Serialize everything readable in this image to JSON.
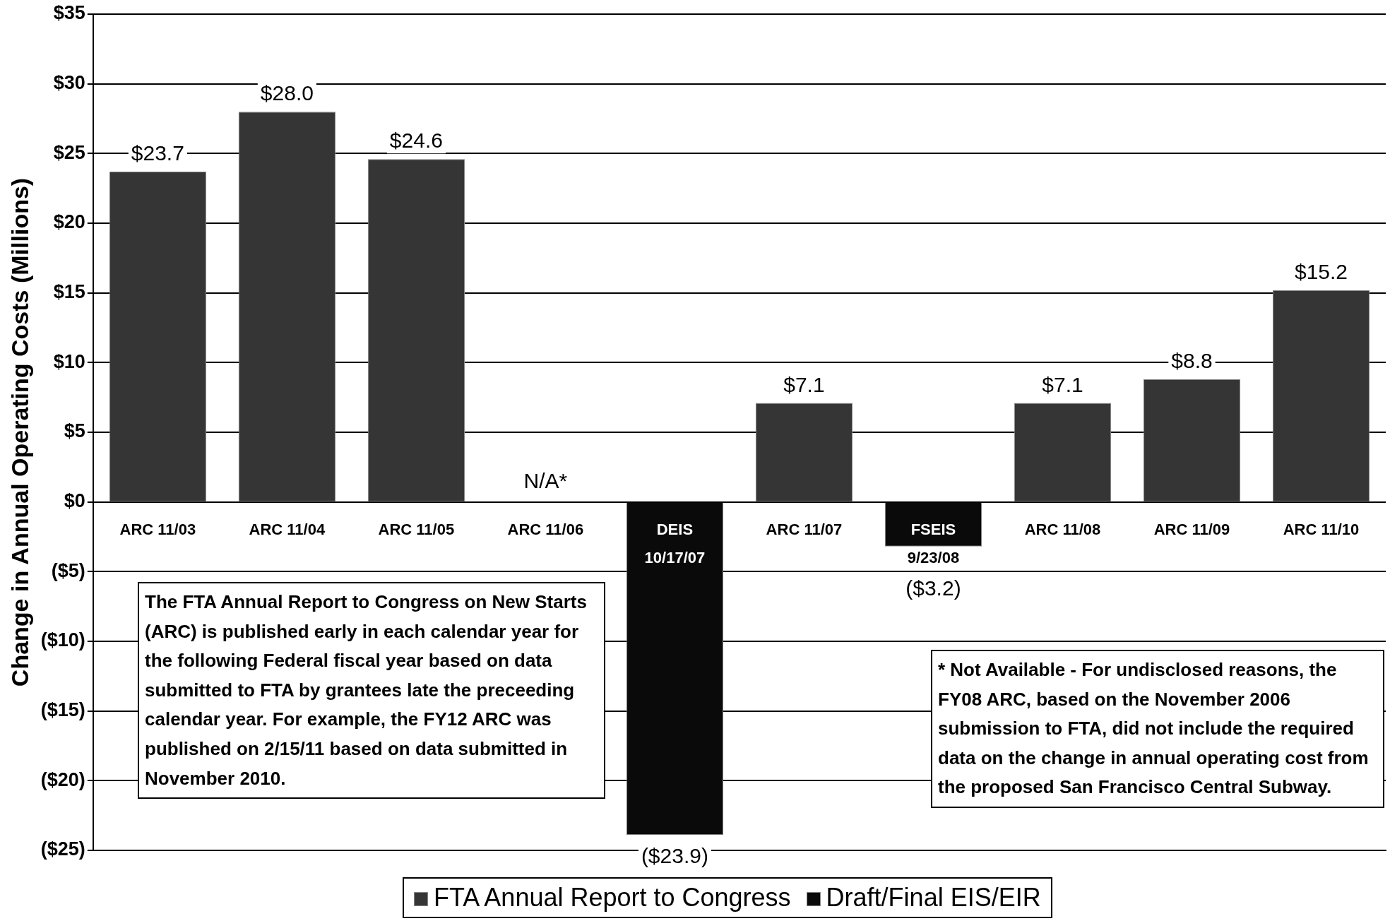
{
  "chart_data": {
    "type": "bar",
    "stacked": true,
    "ylabel": "Change in Annual Operating Costs (Millions)",
    "categories": [
      "ARC 11/03",
      "ARC 11/04",
      "ARC 11/05",
      "ARC 11/06",
      "DEIS 10/17/07",
      "ARC 11/07",
      "FSEIS 9/23/08",
      "ARC 11/08",
      "ARC 11/09",
      "ARC 11/10"
    ],
    "series": [
      {
        "name": "FTA Annual Report to Congress",
        "color": "#353535",
        "values": [
          23.7,
          28.0,
          24.6,
          null,
          null,
          7.1,
          null,
          7.1,
          8.8,
          15.2
        ],
        "value_labels": [
          "$23.7",
          "$28.0",
          "$24.6",
          "N/A*",
          null,
          "$7.1",
          null,
          "$7.1",
          "$8.8",
          "$15.2"
        ]
      },
      {
        "name": "Draft/Final EIS/EIR",
        "color": "#0a0a0a",
        "values": [
          null,
          null,
          null,
          null,
          -23.9,
          null,
          -3.2,
          null,
          null,
          null
        ],
        "value_labels": [
          null,
          null,
          null,
          null,
          "($23.9)",
          null,
          "($3.2)",
          null,
          null,
          null
        ]
      }
    ],
    "ylim": [
      -25,
      35
    ],
    "yticks": [
      {
        "value": -25,
        "label": "($25)"
      },
      {
        "value": -20,
        "label": "($20)"
      },
      {
        "value": -15,
        "label": "($15)"
      },
      {
        "value": -10,
        "label": "($10)"
      },
      {
        "value": -5,
        "label": "($5)"
      },
      {
        "value": 0,
        "label": "$0"
      },
      {
        "value": 5,
        "label": "$5"
      },
      {
        "value": 10,
        "label": "$10"
      },
      {
        "value": 15,
        "label": "$15"
      },
      {
        "value": 20,
        "label": "$20"
      },
      {
        "value": 25,
        "label": "$25"
      },
      {
        "value": 30,
        "label": "$30"
      },
      {
        "value": 35,
        "label": "$35"
      }
    ],
    "grid": "y",
    "legend": "bottom",
    "annotations": [
      "The FTA Annual Report to Congress on New Starts (ARC) is published early in each calendar year for the following Federal fiscal year based on data submitted to FTA by grantees late the preceeding calendar year.  For example, the FY12 ARC was published on 2/15/11 based on data submitted in November 2010.",
      "* Not Available - For undisclosed reasons, the FY08 ARC, based on the November 2006 submission to FTA, did not include the required data on the change in annual operating cost from the proposed San Francisco Central Subway."
    ]
  }
}
